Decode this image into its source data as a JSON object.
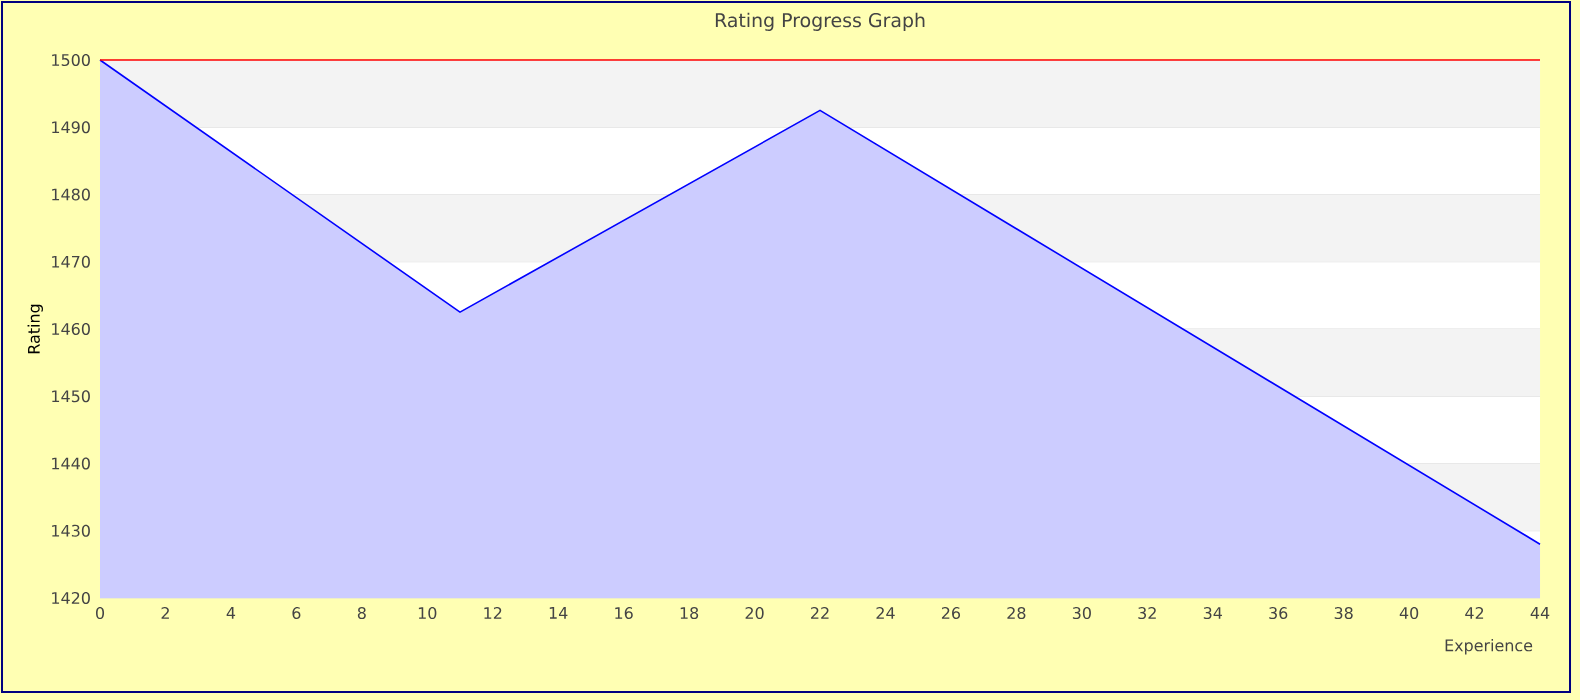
{
  "chart_data": {
    "type": "area",
    "title": "Rating Progress Graph",
    "xlabel": "Experience",
    "ylabel": "Rating",
    "x": [
      0,
      11,
      22,
      44
    ],
    "series": [
      {
        "color": "#0000ff",
        "values": [
          1500,
          1462.5,
          1492.5,
          1428
        ]
      }
    ],
    "xlim": [
      0,
      44
    ],
    "xticks": [
      0,
      2,
      4,
      6,
      8,
      10,
      12,
      14,
      16,
      18,
      20,
      22,
      24,
      26,
      28,
      30,
      32,
      34,
      36,
      38,
      40,
      42,
      44
    ],
    "ylim": [
      1420,
      1500
    ],
    "yticks": [
      1420,
      1430,
      1440,
      1450,
      1460,
      1470,
      1480,
      1490,
      1500
    ],
    "grid": "y",
    "ref_lines": [
      {
        "axis": "y",
        "value": 1500,
        "color": "#ff0000"
      }
    ]
  }
}
